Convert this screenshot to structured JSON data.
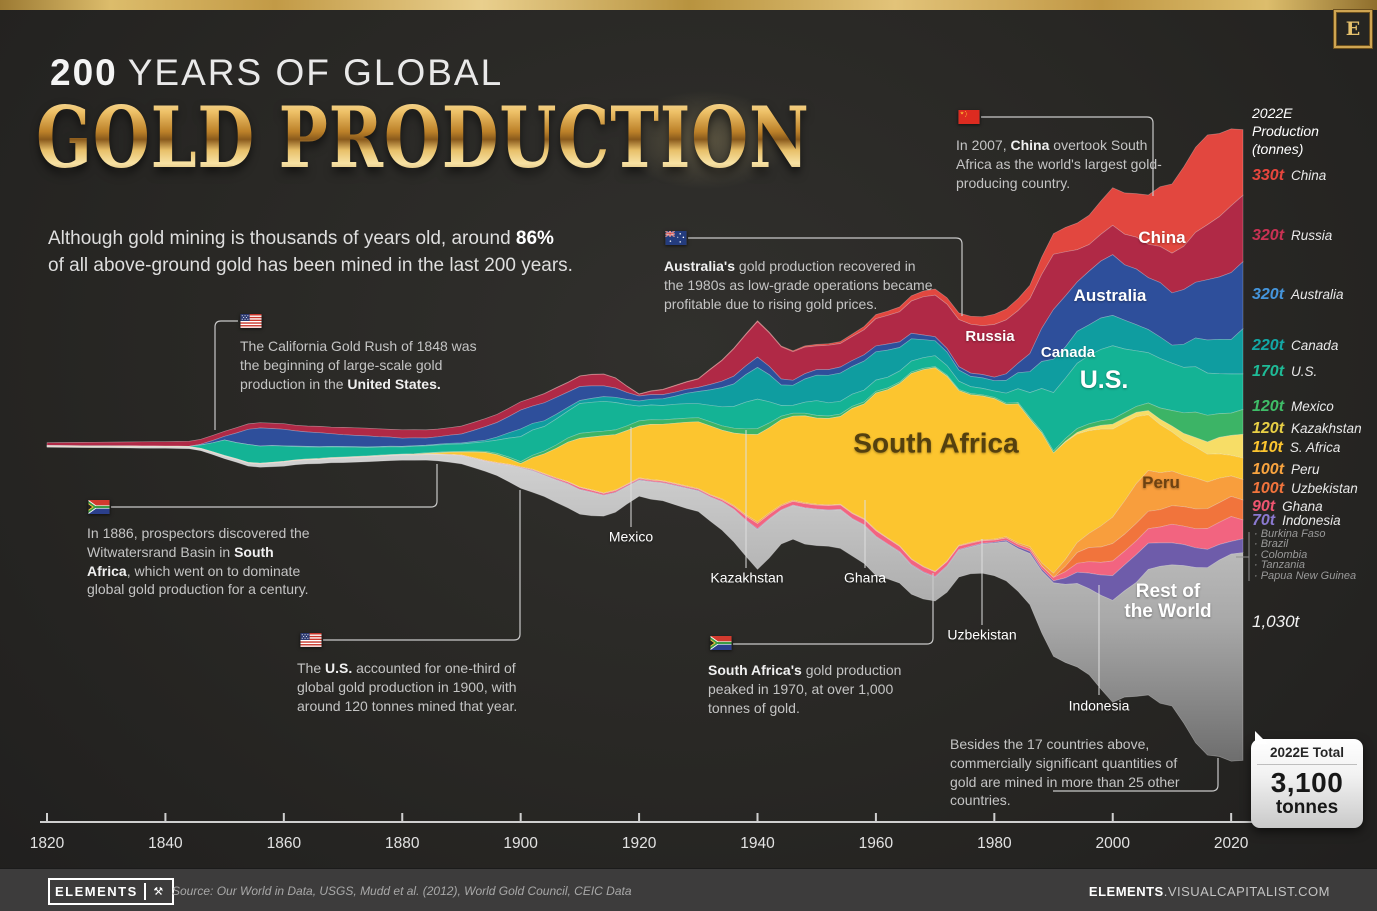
{
  "page": {
    "title_line1_bold": "200",
    "title_line1_rest": "YEARS OF GLOBAL",
    "title_line2": "GOLD PRODUCTION",
    "subtitle": {
      "pre": "Although gold mining is thousands of years old, around ",
      "bold": "86%",
      "line2": "of all above-ground gold has been mined in the last 200 years."
    },
    "corner_logo": "E",
    "accent_gold": "#d9b968",
    "background": "#282724"
  },
  "legend": {
    "header_line1": "2022E",
    "header_line2": "Production",
    "header_line3": "(tonnes)",
    "items": [
      {
        "value": "330t",
        "name": "China",
        "color": "#e8463e"
      },
      {
        "value": "320t",
        "name": "Russia",
        "color": "#c93253"
      },
      {
        "value": "320t",
        "name": "Australia",
        "color": "#4595dc"
      },
      {
        "value": "220t",
        "name": "Canada",
        "color": "#13a7a5"
      },
      {
        "value": "170t",
        "name": "U.S.",
        "color": "#1fbb97"
      },
      {
        "value": "120t",
        "name": "Mexico",
        "color": "#3fbd68"
      },
      {
        "value": "120t",
        "name": "Kazakhstan",
        "color": "#e8cf45"
      },
      {
        "value": "110t",
        "name": "S. Africa",
        "color": "#fcc52f"
      },
      {
        "value": "100t",
        "name": "Peru",
        "color": "#f9a43f"
      },
      {
        "value": "100t",
        "name": "Uzbekistan",
        "color": "#f1743c"
      },
      {
        "value": "90t",
        "name": "Ghana",
        "color": "#ef5570"
      },
      {
        "value": "70t",
        "name": "Indonesia",
        "color": "#8a79d0"
      }
    ],
    "minor_countries": [
      "Burkina Faso",
      "Brazil",
      "Colombia",
      "Tanzania",
      "Papua New Guinea"
    ],
    "rest_total": "1,030t"
  },
  "total_badge": {
    "label": "2022E Total",
    "value": "3,100",
    "unit": "tonnes"
  },
  "annotations": [
    {
      "id": "california",
      "flag": "us",
      "segments": [
        {
          "t": "The California Gold Rush of 1848 was the beginning of large-scale gold production in the "
        },
        {
          "t": "United States.",
          "b": true
        }
      ]
    },
    {
      "id": "witwatersrand",
      "flag": "za",
      "segments": [
        {
          "t": "In 1886, prospectors discovered the Witwatersrand Basin in "
        },
        {
          "t": "South Africa",
          "b": true
        },
        {
          "t": ", which went on to dominate global gold production for a century."
        }
      ]
    },
    {
      "id": "us-1900",
      "flag": "us",
      "segments": [
        {
          "t": "The "
        },
        {
          "t": "U.S.",
          "b": true
        },
        {
          "t": " accounted for one-third of global gold production in 1900, with around 120 tonnes mined that year."
        }
      ]
    },
    {
      "id": "australia-1980s",
      "flag": "au",
      "segments": [
        {
          "t": "Australia's",
          "b": true
        },
        {
          "t": " gold production recovered in the 1980s as low-grade operations became profitable due to rising gold prices."
        }
      ]
    },
    {
      "id": "sa-peak",
      "flag": "za",
      "segments": [
        {
          "t": "South Africa's",
          "b": true
        },
        {
          "t": " gold production peaked in 1970, at over 1,000 tonnes of gold."
        }
      ]
    },
    {
      "id": "china-2007",
      "flag": "cn",
      "segments": [
        {
          "t": "In 2007, "
        },
        {
          "t": "China",
          "b": true
        },
        {
          "t": " overtook South Africa as the world's largest gold-producing country."
        }
      ]
    },
    {
      "id": "other-countries",
      "flag": null,
      "segments": [
        {
          "t": "Besides the 17 countries above, commercially significant quantities of gold are mined in more than 25 other countries."
        }
      ]
    }
  ],
  "footer": {
    "brand": "ELEMENTS",
    "logo_icon": "⚒",
    "source": "Source: Our World in Data, USGS, Mudd et al. (2012), World Gold Council, CEIC Data",
    "site_bold": "ELEMENTS",
    "site_rest": ".VISUALCAPITALIST.COM"
  },
  "chart_data": {
    "type": "area",
    "title": "200 Years of Global Gold Production",
    "unit": "tonnes of gold per year",
    "xlabel": "",
    "ylabel": "",
    "x_ticks": [
      1820,
      1840,
      1860,
      1880,
      1900,
      1920,
      1940,
      1960,
      1980,
      2000,
      2020
    ],
    "x_range": [
      1820,
      2022
    ],
    "total_2022e_tonnes": 3100,
    "years": [
      1820,
      1825,
      1830,
      1835,
      1840,
      1845,
      1850,
      1855,
      1860,
      1865,
      1870,
      1875,
      1880,
      1885,
      1890,
      1895,
      1900,
      1905,
      1910,
      1915,
      1920,
      1925,
      1930,
      1935,
      1940,
      1945,
      1950,
      1955,
      1960,
      1965,
      1970,
      1975,
      1980,
      1985,
      1990,
      1995,
      2000,
      2005,
      2010,
      2015,
      2020,
      2022
    ],
    "series": [
      {
        "name": "China",
        "color": "#e2473f",
        "values": [
          0,
          0,
          0,
          0,
          0,
          0,
          0,
          0,
          0,
          0,
          0,
          0,
          0,
          0,
          0,
          0,
          0,
          2,
          2,
          2,
          3,
          3,
          3,
          4,
          5,
          4,
          7,
          10,
          20,
          25,
          30,
          35,
          50,
          60,
          100,
          140,
          180,
          225,
          345,
          450,
          380,
          330
        ]
      },
      {
        "name": "Russia",
        "color": "#b02946",
        "values": [
          14,
          16,
          18,
          20,
          22,
          25,
          25,
          26,
          27,
          30,
          35,
          38,
          40,
          38,
          38,
          40,
          40,
          45,
          50,
          60,
          8,
          28,
          40,
          120,
          180,
          150,
          115,
          120,
          130,
          155,
          200,
          230,
          260,
          270,
          270,
          130,
          140,
          165,
          190,
          250,
          330,
          320
        ]
      },
      {
        "name": "Australia",
        "color": "#2e4f9b",
        "values": [
          0,
          0,
          0,
          0,
          0,
          0,
          18,
          88,
          80,
          70,
          60,
          52,
          40,
          35,
          45,
          70,
          90,
          85,
          70,
          50,
          25,
          20,
          20,
          35,
          50,
          25,
          27,
          30,
          30,
          28,
          20,
          16,
          17,
          55,
          240,
          250,
          295,
          260,
          260,
          280,
          330,
          320
        ]
      },
      {
        "name": "Canada",
        "color": "#0f9da0",
        "values": [
          0,
          0,
          0,
          0,
          0,
          0,
          0,
          0,
          2,
          3,
          3,
          3,
          3,
          4,
          5,
          8,
          38,
          25,
          15,
          25,
          25,
          35,
          60,
          100,
          160,
          90,
          130,
          140,
          140,
          115,
          75,
          50,
          50,
          85,
          165,
          150,
          155,
          120,
          90,
          155,
          170,
          220
        ]
      },
      {
        "name": "U.S.",
        "color": "#14b395",
        "values": [
          1,
          1,
          1,
          1,
          1,
          1,
          75,
          90,
          75,
          55,
          50,
          40,
          36,
          35,
          35,
          50,
          120,
          120,
          145,
          150,
          75,
          70,
          70,
          100,
          150,
          30,
          70,
          60,
          55,
          55,
          55,
          35,
          30,
          75,
          295,
          320,
          355,
          255,
          230,
          215,
          190,
          170
        ]
      },
      {
        "name": "Mexico",
        "color": "#3cb466",
        "values": [
          1,
          1,
          1,
          1,
          1,
          1,
          1,
          1,
          1,
          2,
          2,
          2,
          2,
          3,
          4,
          6,
          10,
          15,
          25,
          22,
          25,
          22,
          20,
          22,
          30,
          15,
          13,
          11,
          9,
          7,
          6,
          6,
          6,
          8,
          9,
          20,
          25,
          30,
          75,
          135,
          110,
          120
        ]
      },
      {
        "name": "Kazakhstan",
        "color": "#f7dd66",
        "values": [
          0,
          0,
          0,
          0,
          0,
          0,
          0,
          0,
          0,
          0,
          0,
          0,
          0,
          0,
          0,
          0,
          0,
          0,
          0,
          0,
          0,
          0,
          0,
          0,
          0,
          0,
          0,
          0,
          0,
          0,
          0,
          0,
          0,
          0,
          0,
          10,
          25,
          20,
          30,
          50,
          100,
          120
        ]
      },
      {
        "name": "South Africa",
        "color": "#fcc52f",
        "values": [
          0,
          0,
          0,
          0,
          0,
          0,
          0,
          0,
          0,
          0,
          0,
          0,
          0,
          3,
          15,
          45,
          15,
          120,
          235,
          285,
          255,
          295,
          335,
          335,
          435,
          430,
          410,
          455,
          665,
          860,
          1000,
          715,
          675,
          660,
          605,
          525,
          430,
          295,
          190,
          145,
          100,
          110
        ]
      },
      {
        "name": "Peru",
        "color": "#f89e3d",
        "values": [
          2,
          2,
          2,
          2,
          2,
          2,
          2,
          2,
          2,
          2,
          2,
          2,
          2,
          2,
          2,
          3,
          3,
          3,
          3,
          4,
          4,
          4,
          4,
          5,
          8,
          6,
          4,
          4,
          4,
          3,
          3,
          4,
          5,
          8,
          20,
          55,
          135,
          210,
          165,
          145,
          100,
          100
        ]
      },
      {
        "name": "Uzbekistan",
        "color": "#f1743c",
        "values": [
          0,
          0,
          0,
          0,
          0,
          0,
          0,
          0,
          0,
          0,
          0,
          0,
          0,
          0,
          0,
          0,
          0,
          0,
          0,
          0,
          0,
          0,
          0,
          0,
          0,
          0,
          0,
          0,
          0,
          0,
          0,
          0,
          0,
          0,
          0,
          65,
          85,
          85,
          90,
          100,
          100,
          100
        ]
      },
      {
        "name": "Ghana",
        "color": "#f26480",
        "values": [
          1,
          1,
          1,
          1,
          1,
          1,
          1,
          1,
          1,
          1,
          1,
          1,
          1,
          1,
          1,
          1,
          2,
          5,
          9,
          8,
          6,
          6,
          6,
          9,
          25,
          18,
          20,
          23,
          27,
          25,
          22,
          17,
          11,
          12,
          17,
          52,
          72,
          65,
          90,
          95,
          125,
          90
        ]
      },
      {
        "name": "Indonesia",
        "color": "#6e5caa",
        "values": [
          0,
          0,
          0,
          0,
          0,
          0,
          0,
          0,
          0,
          0,
          0,
          0,
          0,
          0,
          1,
          1,
          1,
          2,
          2,
          2,
          2,
          2,
          2,
          2,
          3,
          2,
          2,
          2,
          2,
          3,
          3,
          3,
          4,
          10,
          10,
          65,
          125,
          140,
          105,
          95,
          65,
          70
        ]
      },
      {
        "name": "Rest of the World",
        "color": "gradient-gray",
        "values": [
          4,
          4,
          5,
          5,
          6,
          7,
          12,
          15,
          20,
          20,
          22,
          24,
          25,
          28,
          40,
          50,
          100,
          110,
          120,
          100,
          80,
          90,
          100,
          150,
          200,
          160,
          180,
          185,
          190,
          150,
          120,
          130,
          160,
          230,
          350,
          420,
          500,
          600,
          700,
          900,
          1000,
          1030
        ]
      }
    ],
    "area_labels": [
      "China",
      "Australia",
      "Russia",
      "Canada",
      "U.S.",
      "South Africa",
      "Peru",
      "Mexico",
      "Kazakhstan",
      "Ghana",
      "Uzbekistan",
      "Indonesia",
      "Rest of\nthe World"
    ]
  }
}
